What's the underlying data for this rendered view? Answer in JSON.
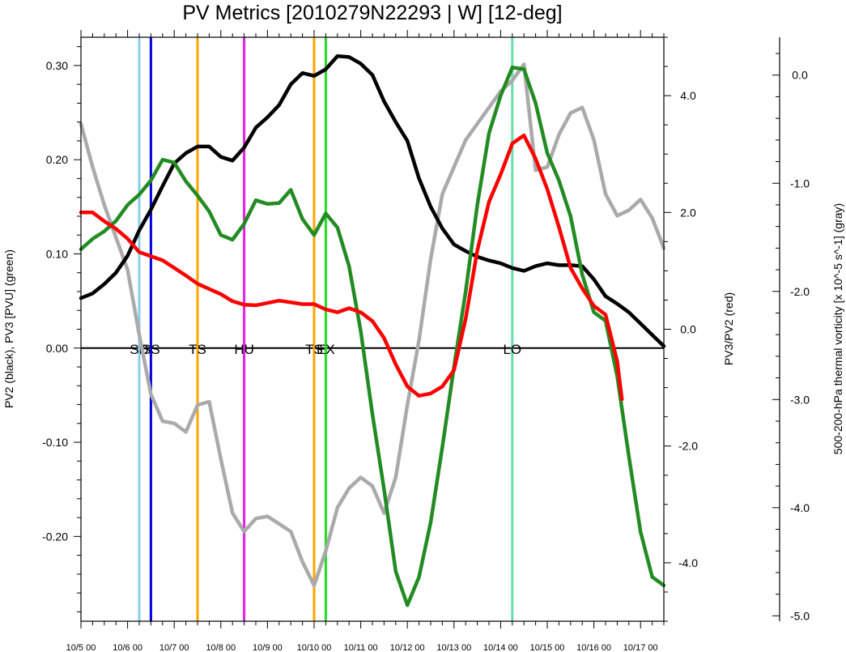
{
  "chart_data": {
    "type": "line",
    "title": "PV Metrics [2010279N22293 | W] [12-deg]",
    "left_axis": {
      "label": "PV2 (black), PV3 [PVU] (green)",
      "ylim": [
        -0.29,
        0.33
      ],
      "ticks": [
        0.3,
        0.2,
        0.1,
        0.0,
        -0.1,
        -0.2
      ],
      "tick_labels": [
        "0.30",
        "0.20",
        "0.10",
        "0.00",
        "-0.10",
        "-0.20"
      ]
    },
    "middle_axis": {
      "label": "PV3/PV2 (red)",
      "ylim": [
        -5.0,
        5.0
      ],
      "ticks": [
        4.0,
        2.0,
        0.0,
        -2.0,
        -4.0
      ],
      "tick_labels": [
        "4.0",
        "2.0",
        "0.0",
        "-2.0",
        "-4.0"
      ]
    },
    "right_axis": {
      "label": "500-200-hPa thermal vorticity [x 10^-5 s^-1] (gray)",
      "ylim": [
        -5.05,
        0.35
      ],
      "ticks": [
        0.0,
        -1.0,
        -2.0,
        -3.0,
        -4.0,
        -5.0
      ],
      "tick_labels": [
        "0.0",
        "-1.0",
        "-2.0",
        "-3.0",
        "-4.0",
        "-5.0"
      ]
    },
    "x_axis": {
      "xlim": [
        0,
        12.5
      ],
      "ticks": [
        0,
        1,
        2,
        3,
        4,
        5,
        6,
        7,
        8,
        9,
        10,
        11,
        12
      ],
      "tick_labels": [
        "10/5 00",
        "10/6 00",
        "10/7 00",
        "10/8 00",
        "10/9 00",
        "10/10 00",
        "10/11 00",
        "10/12 00",
        "10/13 00",
        "10/14 00",
        "10/15 00",
        "10/16 00",
        "10/17 00"
      ]
    },
    "zero_line": 0.0,
    "events": [
      {
        "x": 1.25,
        "color": "#87ceeb",
        "label": "SD"
      },
      {
        "x": 1.5,
        "color": "#0000dd",
        "label": "SS"
      },
      {
        "x": 2.5,
        "color": "#ffa500",
        "label": "TS"
      },
      {
        "x": 3.5,
        "color": "#e020e0",
        "label": "HU"
      },
      {
        "x": 5.0,
        "color": "#ffa500",
        "label": "TS"
      },
      {
        "x": 5.25,
        "color": "#22dd22",
        "label": "EX"
      },
      {
        "x": 9.25,
        "color": "#66ddaa",
        "label": "LO"
      }
    ],
    "series": [
      {
        "color": "#000000",
        "axis": "left",
        "x": [
          0,
          0.25,
          0.5,
          0.75,
          1.0,
          1.25,
          1.5,
          1.75,
          2.0,
          2.25,
          2.5,
          2.75,
          3.0,
          3.25,
          3.5,
          3.75,
          4.0,
          4.25,
          4.5,
          4.75,
          5.0,
          5.25,
          5.5,
          5.75,
          6.0,
          6.25,
          6.5,
          6.75,
          7.0,
          7.25,
          7.5,
          7.75,
          8.0,
          8.25,
          8.5,
          8.75,
          9.0,
          9.25,
          9.5,
          9.75,
          10.0,
          10.25,
          10.5,
          10.75,
          11.0,
          11.25,
          11.5,
          11.75,
          12.0,
          12.25,
          12.5
        ],
        "values": [
          0.053,
          0.058,
          0.068,
          0.08,
          0.098,
          0.125,
          0.147,
          0.172,
          0.196,
          0.207,
          0.214,
          0.214,
          0.203,
          0.199,
          0.213,
          0.234,
          0.245,
          0.258,
          0.28,
          0.292,
          0.289,
          0.296,
          0.31,
          0.309,
          0.302,
          0.29,
          0.262,
          0.24,
          0.22,
          0.18,
          0.15,
          0.127,
          0.11,
          0.103,
          0.097,
          0.093,
          0.09,
          0.085,
          0.082,
          0.087,
          0.09,
          0.088,
          0.088,
          0.087,
          0.073,
          0.055,
          0.047,
          0.038,
          0.026,
          0.014,
          0.002
        ]
      },
      {
        "color": "#228b22",
        "axis": "left",
        "x": [
          0,
          0.25,
          0.5,
          0.75,
          1.0,
          1.25,
          1.5,
          1.75,
          2.0,
          2.25,
          2.5,
          2.75,
          3.0,
          3.25,
          3.5,
          3.75,
          4.0,
          4.25,
          4.5,
          4.75,
          5.0,
          5.25,
          5.5,
          5.75,
          6.0,
          6.25,
          6.5,
          6.75,
          7.0,
          7.25,
          7.5,
          7.75,
          8.0,
          8.25,
          8.5,
          8.75,
          9.0,
          9.25,
          9.5,
          9.75,
          10.0,
          10.25,
          10.5,
          10.75,
          11.0,
          11.25,
          11.5,
          11.75,
          12.0,
          12.25,
          12.5
        ],
        "values": [
          0.105,
          0.116,
          0.124,
          0.135,
          0.152,
          0.163,
          0.178,
          0.2,
          0.197,
          0.177,
          0.162,
          0.145,
          0.12,
          0.115,
          0.132,
          0.157,
          0.153,
          0.154,
          0.168,
          0.137,
          0.12,
          0.143,
          0.128,
          0.087,
          0.018,
          -0.07,
          -0.15,
          -0.237,
          -0.273,
          -0.243,
          -0.185,
          -0.105,
          -0.02,
          0.06,
          0.152,
          0.228,
          0.268,
          0.298,
          0.296,
          0.26,
          0.207,
          0.178,
          0.14,
          0.078,
          0.038,
          0.029,
          -0.03,
          -0.115,
          -0.195,
          -0.243,
          -0.252
        ]
      },
      {
        "color": "#aaaaaa",
        "axis": "right",
        "x": [
          0,
          0.25,
          0.5,
          0.75,
          1.0,
          1.25,
          1.5,
          1.75,
          2.0,
          2.25,
          2.5,
          2.75,
          3.0,
          3.25,
          3.5,
          3.75,
          4.0,
          4.25,
          4.5,
          4.75,
          5.0,
          5.25,
          5.5,
          5.75,
          6.0,
          6.25,
          6.5,
          6.75,
          7.0,
          7.25,
          7.5,
          7.75,
          8.0,
          8.25,
          8.5,
          8.75,
          9.0,
          9.25,
          9.5,
          9.75,
          10.0,
          10.25,
          10.5,
          10.75,
          11.0,
          11.25,
          11.5,
          11.75,
          12.0,
          12.25,
          12.5
        ],
        "values": [
          -0.45,
          -0.85,
          -1.2,
          -1.5,
          -1.8,
          -2.4,
          -2.95,
          -3.2,
          -3.22,
          -3.3,
          -3.05,
          -3.02,
          -3.55,
          -4.05,
          -4.22,
          -4.1,
          -4.08,
          -4.15,
          -4.22,
          -4.5,
          -4.72,
          -4.4,
          -4.0,
          -3.82,
          -3.72,
          -3.8,
          -4.05,
          -3.72,
          -3.05,
          -2.45,
          -1.7,
          -1.1,
          -0.85,
          -0.6,
          -0.45,
          -0.3,
          -0.15,
          -0.05,
          0.1,
          -0.88,
          -0.85,
          -0.55,
          -0.35,
          -0.3,
          -0.6,
          -1.1,
          -1.3,
          -1.25,
          -1.15,
          -1.32,
          -1.6
        ]
      },
      {
        "color": "#ff0000",
        "axis": "middle",
        "x": [
          0,
          0.25,
          0.5,
          0.75,
          1.0,
          1.25,
          1.5,
          1.75,
          2.0,
          2.25,
          2.5,
          2.75,
          3.0,
          3.25,
          3.5,
          3.75,
          4.0,
          4.25,
          4.5,
          4.75,
          5.0,
          5.25,
          5.5,
          5.75,
          6.0,
          6.25,
          6.5,
          6.75,
          7.0,
          7.25,
          7.5,
          7.75,
          8.0,
          8.25,
          8.5,
          8.75,
          9.0,
          9.25,
          9.5,
          9.75,
          10.0,
          10.25,
          10.5,
          10.75,
          11.0,
          11.25,
          11.5,
          11.6
        ],
        "values": [
          2.0,
          2.0,
          1.85,
          1.72,
          1.55,
          1.32,
          1.25,
          1.18,
          1.05,
          0.92,
          0.78,
          0.69,
          0.6,
          0.48,
          0.42,
          0.41,
          0.45,
          0.49,
          0.46,
          0.43,
          0.43,
          0.34,
          0.29,
          0.36,
          0.29,
          0.14,
          -0.15,
          -0.6,
          -0.98,
          -1.14,
          -1.1,
          -0.98,
          -0.7,
          0.18,
          1.35,
          2.18,
          2.65,
          3.18,
          3.32,
          2.92,
          2.4,
          1.75,
          1.05,
          0.7,
          0.4,
          0.25,
          -0.55,
          -1.2
        ]
      }
    ]
  }
}
